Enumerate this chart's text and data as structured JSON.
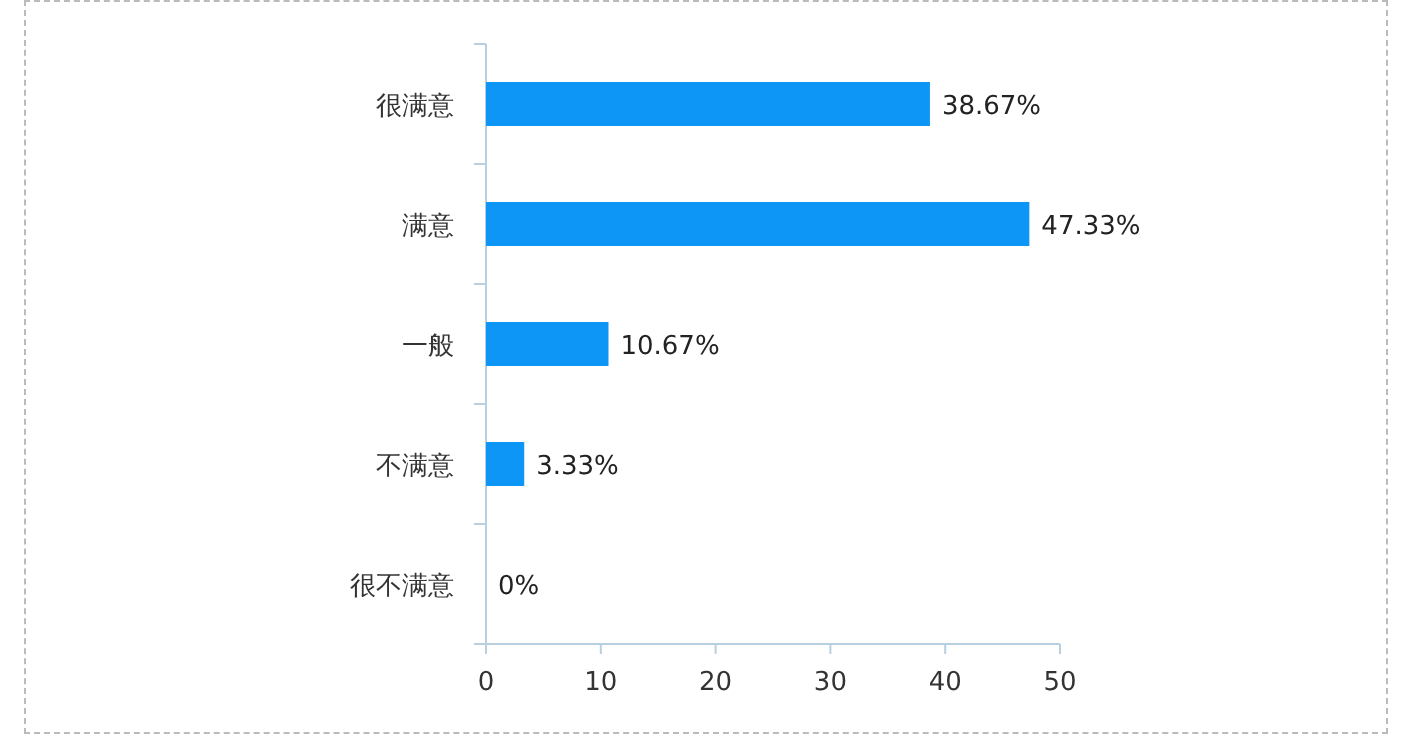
{
  "chart_data": {
    "type": "bar",
    "orientation": "horizontal",
    "categories": [
      "很满意",
      "满意",
      "一般",
      "不满意",
      "很不满意"
    ],
    "values": [
      38.67,
      47.33,
      10.67,
      3.33,
      0
    ],
    "value_labels": [
      "38.67%",
      "47.33%",
      "10.67%",
      "3.33%",
      "0%"
    ],
    "color": "#0d96f5",
    "xlim": [
      0,
      50
    ],
    "xticks": [
      0,
      10,
      20,
      30,
      40,
      50
    ],
    "grid": false
  }
}
